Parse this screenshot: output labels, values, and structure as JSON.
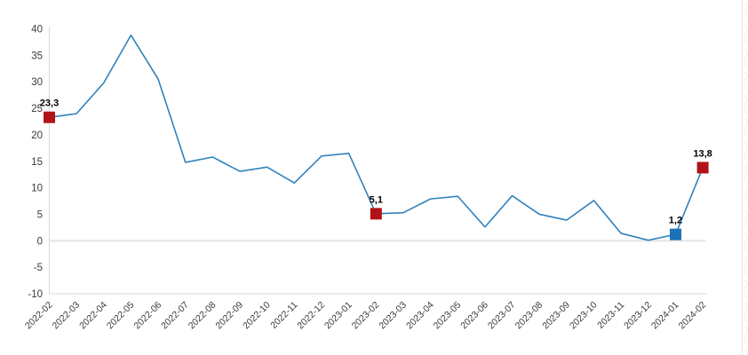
{
  "chart_data": {
    "type": "line",
    "title": "",
    "xlabel": "",
    "ylabel": "",
    "x": [
      "2022-02",
      "2022-03",
      "2022-04",
      "2022-05",
      "2022-06",
      "2022-07",
      "2022-08",
      "2022-09",
      "2022-10",
      "2022-11",
      "2022-12",
      "2023-01",
      "2023-02",
      "2023-03",
      "2023-04",
      "2023-05",
      "2023-06",
      "2023-07",
      "2023-08",
      "2023-09",
      "2023-10",
      "2023-11",
      "2023-12",
      "2024-01",
      "2024-02"
    ],
    "values": [
      23.3,
      24.0,
      29.8,
      38.8,
      30.5,
      14.8,
      15.8,
      13.1,
      13.9,
      10.9,
      16.0,
      16.5,
      5.1,
      5.3,
      7.9,
      8.4,
      2.6,
      8.5,
      5.0,
      3.9,
      7.6,
      1.4,
      0.1,
      1.2,
      13.8
    ],
    "ylim": [
      -10,
      40
    ],
    "ytick_step": 5,
    "grid": "horizontal line at zero only",
    "legend_position": "none",
    "highlighted_points": [
      {
        "x": "2022-02",
        "value": 23.3,
        "label": "23,3",
        "marker": "square",
        "color": "#b11217"
      },
      {
        "x": "2023-02",
        "value": 5.1,
        "label": "5,1",
        "marker": "square",
        "color": "#b11217"
      },
      {
        "x": "2024-01",
        "value": 1.2,
        "label": "1,2",
        "marker": "square",
        "color": "#1a72b8"
      },
      {
        "x": "2024-02",
        "value": 13.8,
        "label": "13,8",
        "marker": "square",
        "color": "#b11217"
      }
    ],
    "colors": {
      "line": "#3182bd",
      "axis": "#d9d9d9",
      "zero_gridline": "#e9e9e9",
      "tick_text": "#3a3a3a",
      "annotation_text": "#000000",
      "background": "#ffffff"
    }
  }
}
